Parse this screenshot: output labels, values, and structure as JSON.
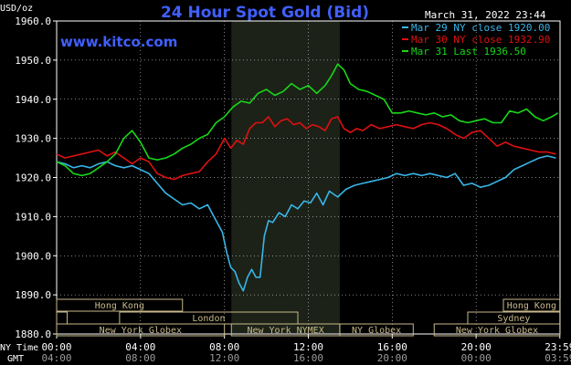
{
  "title": "24 Hour Spot Gold (Bid)",
  "watermark": "www.kitco.com",
  "timestamp": "March 31, 2022 23:44",
  "y_unit": "USD/oz",
  "x_axis": {
    "ny_time_label": "NY Time",
    "gmt_label": "GMT",
    "ny_ticks": [
      "00:00",
      "04:00",
      "08:00",
      "12:00",
      "16:00",
      "20:00",
      "23:59"
    ],
    "gmt_ticks": [
      "04:00",
      "08:00",
      "12:00",
      "16:00",
      "20:00",
      "00:00",
      "03:59"
    ]
  },
  "colors": {
    "background": "#000000",
    "title": "#4060ff",
    "grid": "#ffffff",
    "text": "#ffffff",
    "session_band": "#c8b98a",
    "highlight": "#1c2218",
    "series_mar29": "#38b6e8",
    "series_mar30": "#e01010",
    "series_mar31": "#18d818"
  },
  "market_sessions": [
    {
      "name": "Hong Kong",
      "row": 0,
      "start_hour": 0.0,
      "end_hour": 6.0
    },
    {
      "name": "Hong Kong",
      "row": 0,
      "start_hour": 21.3,
      "end_hour": 23.99
    },
    {
      "name": "London",
      "row": 1,
      "start_hour": 0.0,
      "end_hour": 0.5
    },
    {
      "name": "London",
      "row": 1,
      "start_hour": 3.0,
      "end_hour": 11.5
    },
    {
      "name": "Sydney",
      "row": 1,
      "start_hour": 19.6,
      "end_hour": 23.99
    },
    {
      "name": "New York Globex",
      "row": 2,
      "start_hour": 0.0,
      "end_hour": 8.0
    },
    {
      "name": "New York NYMEX",
      "row": 2,
      "start_hour": 8.33,
      "end_hour": 13.5
    },
    {
      "name": "NY Globex",
      "row": 2,
      "start_hour": 13.5,
      "end_hour": 17.0
    },
    {
      "name": "New York Globex",
      "row": 2,
      "start_hour": 18.0,
      "end_hour": 23.99
    }
  ],
  "chart_data": {
    "type": "line",
    "title": "24 Hour Spot Gold (Bid)",
    "xlabel": "NY Time",
    "ylabel": "USD/oz",
    "xlim": [
      0,
      24
    ],
    "ylim": [
      1880,
      1960
    ],
    "yticks": [
      "1960.0",
      "1950.0",
      "1940.0",
      "1930.0",
      "1920.0",
      "1910.0",
      "1900.0",
      "1890.0",
      "1880.0"
    ],
    "grid": true,
    "legend_position": "top-right",
    "highlight_range_hours": [
      8.33,
      13.5
    ],
    "series": [
      {
        "name": "Mar 29 NY close 1920.00",
        "x": [
          0.0,
          0.4,
          0.8,
          1.2,
          1.6,
          2.0,
          2.4,
          2.8,
          3.2,
          3.6,
          4.0,
          4.4,
          4.8,
          5.2,
          5.6,
          6.0,
          6.4,
          6.8,
          7.2,
          7.6,
          7.9,
          8.1,
          8.3,
          8.5,
          8.7,
          8.9,
          9.1,
          9.3,
          9.5,
          9.7,
          9.9,
          10.1,
          10.3,
          10.6,
          10.9,
          11.2,
          11.5,
          11.8,
          12.1,
          12.4,
          12.7,
          13.0,
          13.4,
          13.8,
          14.2,
          14.6,
          15.0,
          15.4,
          15.8,
          16.2,
          16.6,
          17.0,
          17.4,
          17.8,
          18.2,
          18.6,
          19.0,
          19.4,
          19.8,
          20.2,
          20.6,
          21.0,
          21.4,
          21.8,
          22.2,
          22.6,
          23.0,
          23.4,
          23.8
        ],
        "values": [
          1924.0,
          1923.5,
          1922.5,
          1923.0,
          1922.5,
          1923.5,
          1924.0,
          1923.0,
          1922.5,
          1923.0,
          1922.0,
          1921.0,
          1918.5,
          1916.0,
          1914.5,
          1913.0,
          1913.5,
          1912.0,
          1913.0,
          1909.0,
          1906.0,
          1901.0,
          1897.0,
          1896.0,
          1893.0,
          1891.0,
          1894.5,
          1896.5,
          1894.5,
          1894.5,
          1905.0,
          1909.0,
          1908.5,
          1911.0,
          1910.0,
          1913.0,
          1912.0,
          1914.0,
          1913.5,
          1916.0,
          1913.0,
          1916.5,
          1915.0,
          1917.0,
          1918.0,
          1918.5,
          1919.0,
          1919.5,
          1920.0,
          1921.0,
          1920.5,
          1921.0,
          1920.5,
          1921.0,
          1920.5,
          1920.0,
          1921.0,
          1918.0,
          1918.5,
          1917.5,
          1918.0,
          1919.0,
          1920.0,
          1922.0,
          1923.0,
          1924.0,
          1925.0,
          1925.5,
          1925.0
        ]
      },
      {
        "name": "Mar 30 NY close 1932.90",
        "x": [
          0.0,
          0.4,
          0.8,
          1.2,
          1.6,
          2.0,
          2.4,
          2.8,
          3.2,
          3.6,
          4.0,
          4.4,
          4.8,
          5.2,
          5.6,
          6.0,
          6.4,
          6.8,
          7.2,
          7.6,
          8.0,
          8.3,
          8.6,
          8.9,
          9.2,
          9.5,
          9.8,
          10.1,
          10.4,
          10.7,
          11.0,
          11.3,
          11.6,
          11.9,
          12.2,
          12.5,
          12.8,
          13.1,
          13.4,
          13.7,
          14.0,
          14.3,
          14.6,
          15.0,
          15.4,
          15.8,
          16.2,
          16.6,
          17.0,
          17.4,
          17.8,
          18.2,
          18.6,
          19.0,
          19.4,
          19.8,
          20.2,
          20.6,
          21.0,
          21.4,
          21.8,
          22.2,
          22.6,
          23.0,
          23.4,
          23.8
        ],
        "values": [
          1926.0,
          1925.0,
          1925.5,
          1926.0,
          1926.5,
          1927.0,
          1925.5,
          1926.5,
          1925.0,
          1923.5,
          1925.0,
          1924.0,
          1921.0,
          1920.0,
          1919.5,
          1920.5,
          1921.0,
          1921.5,
          1924.0,
          1926.0,
          1930.0,
          1927.5,
          1929.5,
          1928.5,
          1932.5,
          1934.0,
          1934.0,
          1935.5,
          1933.0,
          1934.5,
          1935.0,
          1933.5,
          1934.0,
          1932.5,
          1933.5,
          1933.0,
          1932.0,
          1935.0,
          1935.5,
          1932.5,
          1931.5,
          1932.5,
          1932.0,
          1933.5,
          1932.5,
          1933.0,
          1933.5,
          1933.0,
          1932.5,
          1933.5,
          1934.0,
          1933.5,
          1932.5,
          1931.0,
          1930.0,
          1931.5,
          1932.0,
          1930.0,
          1928.0,
          1929.0,
          1928.0,
          1927.5,
          1927.0,
          1926.5,
          1926.5,
          1926.0
        ]
      },
      {
        "name": "Mar 31 Last 1936.50",
        "x": [
          0.0,
          0.4,
          0.8,
          1.2,
          1.6,
          2.0,
          2.4,
          2.8,
          3.2,
          3.6,
          4.0,
          4.4,
          4.8,
          5.2,
          5.6,
          6.0,
          6.4,
          6.8,
          7.2,
          7.6,
          8.0,
          8.4,
          8.8,
          9.2,
          9.6,
          10.0,
          10.4,
          10.8,
          11.2,
          11.6,
          12.0,
          12.4,
          12.8,
          13.1,
          13.4,
          13.7,
          14.0,
          14.4,
          14.8,
          15.2,
          15.6,
          16.0,
          16.4,
          16.8,
          17.2,
          17.6,
          18.0,
          18.4,
          18.8,
          19.2,
          19.6,
          20.0,
          20.4,
          20.8,
          21.2,
          21.6,
          22.0,
          22.4,
          22.8,
          23.2,
          23.6,
          23.9
        ],
        "values": [
          1924.0,
          1923.0,
          1921.0,
          1920.5,
          1921.0,
          1922.5,
          1924.0,
          1926.0,
          1930.0,
          1932.0,
          1929.0,
          1925.0,
          1924.5,
          1925.0,
          1926.0,
          1927.5,
          1928.5,
          1930.0,
          1931.0,
          1934.0,
          1935.5,
          1938.0,
          1939.5,
          1939.0,
          1941.5,
          1942.5,
          1941.0,
          1942.0,
          1944.0,
          1942.5,
          1943.5,
          1941.5,
          1943.5,
          1946.0,
          1949.0,
          1947.5,
          1944.0,
          1942.5,
          1942.0,
          1941.0,
          1940.0,
          1936.5,
          1936.5,
          1937.0,
          1936.5,
          1936.0,
          1936.5,
          1935.5,
          1936.0,
          1934.5,
          1934.0,
          1934.5,
          1935.0,
          1934.0,
          1934.0,
          1937.0,
          1936.5,
          1937.5,
          1935.5,
          1934.5,
          1935.5,
          1936.5
        ]
      }
    ]
  }
}
